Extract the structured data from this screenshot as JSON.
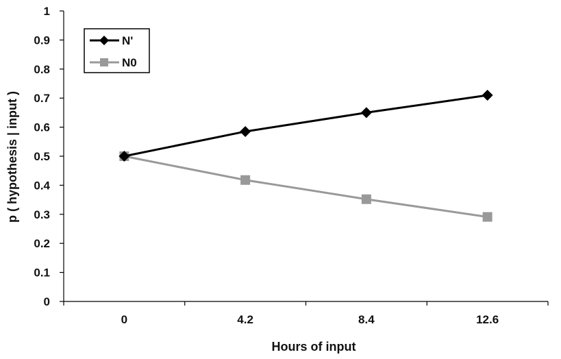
{
  "chart_data": {
    "type": "line",
    "title": "",
    "xlabel": "Hours of input",
    "ylabel": "p ( hypothesis | input )",
    "categories": [
      "0",
      "4.2",
      "8.4",
      "12.6"
    ],
    "ylim": [
      0,
      1
    ],
    "yticks": [
      "0",
      "0.1",
      "0.2",
      "0.3",
      "0.4",
      "0.5",
      "0.6",
      "0.7",
      "0.8",
      "0.9",
      "1"
    ],
    "grid": false,
    "legend_position": "top-left",
    "series": [
      {
        "name": "N'",
        "values": [
          0.5,
          0.585,
          0.65,
          0.71
        ],
        "color": "#000000",
        "marker": "diamond"
      },
      {
        "name": "N0",
        "values": [
          0.5,
          0.418,
          0.352,
          0.291
        ],
        "color": "#999999",
        "marker": "square"
      }
    ]
  }
}
